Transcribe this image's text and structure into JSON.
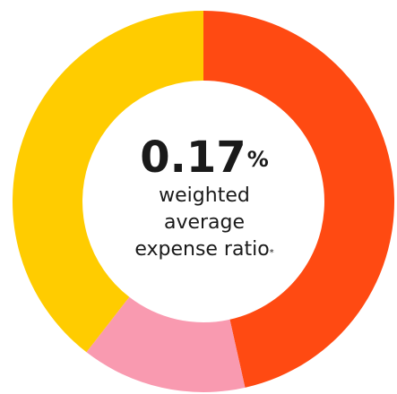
{
  "chart_data": {
    "type": "pie",
    "subtype": "donut",
    "title": "",
    "slices": [
      {
        "value": 46.5,
        "color": "#FF4A12"
      },
      {
        "value": 14.0,
        "color": "#F99AB0"
      },
      {
        "value": 39.5,
        "color": "#FFCC00"
      }
    ],
    "center": {
      "value": "0.17",
      "value_unit": "%",
      "lines": [
        "weighted",
        "average",
        "expense ratio"
      ],
      "footnote_mark": "*"
    }
  }
}
